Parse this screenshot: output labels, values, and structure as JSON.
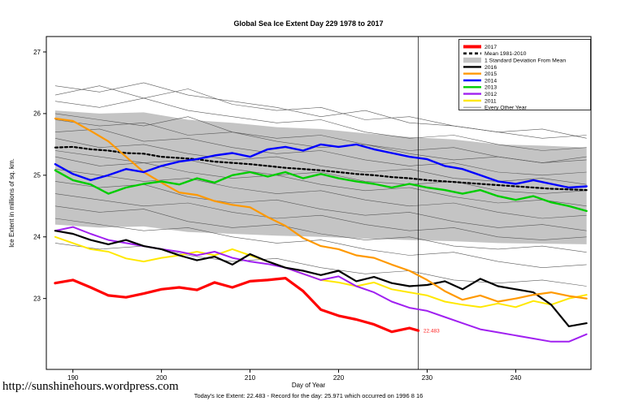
{
  "page": {
    "footer_url": "http://sunshinehours.wordpress.com"
  },
  "chart_data": {
    "type": "line",
    "title": "Global Sea Ice Extent Day 229 1978 to 2017",
    "xlabel": "Day of Year",
    "ylabel": "Ice Extent in millions of sq. km.",
    "caption": "Today's Ice Extent: 22.483  - Record for the day: 25.971 which occurred on 1996 8 16",
    "xlim": [
      187,
      248.5
    ],
    "ylim": [
      21.85,
      27.25
    ],
    "xticks": [
      190,
      200,
      210,
      220,
      230,
      240
    ],
    "yticks": [
      23,
      24,
      25,
      26,
      27
    ],
    "grid": false,
    "legend_position": "top-right",
    "vline_x": 229,
    "annotation": {
      "text": "22.483",
      "x": 229.3,
      "y": 22.483,
      "color": "#FF2222"
    },
    "band": {
      "name": "1 Standard Deviation From Mean",
      "color": "#C4C4C4",
      "days": [
        188,
        193,
        198,
        203,
        208,
        213,
        218,
        223,
        228,
        233,
        238,
        243,
        248
      ],
      "upper": [
        26.05,
        26.0,
        26.02,
        25.9,
        25.85,
        25.78,
        25.75,
        25.68,
        25.62,
        25.58,
        25.5,
        25.48,
        25.45
      ],
      "lower": [
        24.2,
        24.15,
        24.17,
        24.08,
        24.05,
        24.02,
        24.0,
        23.97,
        23.95,
        23.93,
        23.9,
        23.89,
        23.88
      ]
    },
    "days_main": [
      188,
      190,
      192,
      194,
      196,
      198,
      200,
      202,
      204,
      206,
      208,
      210,
      212,
      214,
      216,
      218,
      220,
      222,
      224,
      226,
      228,
      230,
      232,
      234,
      236,
      238,
      240,
      242,
      244,
      246,
      248
    ],
    "series": [
      {
        "name": "Mean 1981-2010",
        "color": "#000000",
        "width": 2.2,
        "dash": "3,3",
        "values": [
          25.45,
          25.46,
          25.42,
          25.4,
          25.36,
          25.35,
          25.3,
          25.28,
          25.26,
          25.22,
          25.2,
          25.18,
          25.15,
          25.12,
          25.1,
          25.08,
          25.05,
          25.02,
          25.0,
          24.97,
          24.95,
          24.92,
          24.9,
          24.88,
          24.86,
          24.84,
          24.82,
          24.8,
          24.78,
          24.77,
          24.76
        ]
      },
      {
        "name": "2011",
        "color": "#FFE800",
        "width": 2.0,
        "values": [
          24.0,
          23.9,
          23.8,
          23.76,
          23.65,
          23.6,
          23.66,
          23.7,
          23.76,
          23.7,
          23.8,
          23.7,
          23.6,
          23.5,
          23.4,
          23.3,
          23.26,
          23.2,
          23.26,
          23.15,
          23.1,
          23.05,
          22.95,
          22.9,
          22.86,
          22.92,
          22.86,
          22.96,
          22.9,
          23.0,
          23.06
        ]
      },
      {
        "name": "2012",
        "color": "#A020F0",
        "width": 2.0,
        "values": [
          24.1,
          24.16,
          24.05,
          23.95,
          23.9,
          23.85,
          23.8,
          23.76,
          23.7,
          23.76,
          23.66,
          23.6,
          23.56,
          23.5,
          23.4,
          23.3,
          23.36,
          23.2,
          23.1,
          22.95,
          22.85,
          22.8,
          22.7,
          22.6,
          22.5,
          22.45,
          22.4,
          22.35,
          22.3,
          22.3,
          22.42
        ]
      },
      {
        "name": "2016",
        "color": "#000000",
        "width": 2.2,
        "values": [
          24.1,
          24.05,
          23.95,
          23.88,
          23.95,
          23.85,
          23.8,
          23.7,
          23.62,
          23.68,
          23.55,
          23.72,
          23.6,
          23.5,
          23.45,
          23.38,
          23.45,
          23.28,
          23.35,
          23.25,
          23.2,
          23.22,
          23.28,
          23.15,
          23.32,
          23.2,
          23.15,
          23.1,
          22.9,
          22.55,
          22.6
        ]
      },
      {
        "name": "2015",
        "color": "#FF9900",
        "width": 2.2,
        "values": [
          25.92,
          25.88,
          25.72,
          25.55,
          25.3,
          25.05,
          24.88,
          24.72,
          24.68,
          24.58,
          24.52,
          24.48,
          24.32,
          24.18,
          23.98,
          23.85,
          23.8,
          23.7,
          23.66,
          23.55,
          23.45,
          23.3,
          23.12,
          22.98,
          23.05,
          22.95,
          23.0,
          23.06,
          23.1,
          23.04,
          23.0
        ]
      },
      {
        "name": "2013",
        "color": "#00CC00",
        "width": 2.4,
        "values": [
          25.08,
          24.92,
          24.85,
          24.7,
          24.8,
          24.86,
          24.9,
          24.85,
          24.95,
          24.88,
          25.0,
          25.05,
          24.98,
          25.05,
          24.95,
          25.02,
          24.95,
          24.9,
          24.86,
          24.8,
          24.86,
          24.8,
          24.76,
          24.7,
          24.76,
          24.66,
          24.6,
          24.66,
          24.56,
          24.5,
          24.42
        ]
      },
      {
        "name": "2014",
        "color": "#0000FF",
        "width": 2.4,
        "values": [
          25.18,
          25.02,
          24.92,
          25.0,
          25.1,
          25.05,
          25.15,
          25.22,
          25.26,
          25.32,
          25.36,
          25.3,
          25.42,
          25.46,
          25.4,
          25.5,
          25.46,
          25.5,
          25.42,
          25.36,
          25.3,
          25.26,
          25.15,
          25.1,
          25.0,
          24.9,
          24.86,
          24.92,
          24.86,
          24.8,
          24.82
        ]
      },
      {
        "name": "2017",
        "color": "#FF0000",
        "width": 3.2,
        "days": [
          188,
          190,
          192,
          194,
          196,
          198,
          200,
          202,
          204,
          206,
          208,
          210,
          212,
          214,
          216,
          218,
          220,
          222,
          224,
          226,
          228,
          229
        ],
        "values": [
          23.25,
          23.3,
          23.18,
          23.05,
          23.02,
          23.08,
          23.15,
          23.18,
          23.14,
          23.26,
          23.18,
          23.28,
          23.3,
          23.33,
          23.12,
          22.82,
          22.72,
          22.66,
          22.58,
          22.46,
          22.52,
          22.48
        ]
      }
    ],
    "background": {
      "name": "Every Other Year",
      "color": "#5A5A5A",
      "width": 0.6,
      "days": [
        188,
        193,
        198,
        203,
        208,
        213,
        218,
        223,
        228,
        233,
        238,
        243,
        248
      ],
      "lines": [
        [
          26.3,
          26.45,
          26.25,
          26.4,
          26.15,
          26.05,
          26.1,
          25.9,
          25.95,
          25.8,
          25.7,
          25.6,
          25.65
        ],
        [
          26.45,
          26.35,
          26.5,
          26.3,
          26.2,
          26.1,
          25.95,
          26.05,
          25.85,
          25.8,
          25.7,
          25.75,
          25.6
        ],
        [
          26.2,
          26.1,
          26.25,
          26.05,
          25.95,
          25.85,
          25.9,
          25.7,
          25.6,
          25.65,
          25.5,
          25.4,
          25.45
        ],
        [
          26.0,
          25.9,
          25.8,
          25.95,
          25.7,
          25.6,
          25.65,
          25.5,
          25.4,
          25.45,
          25.3,
          25.2,
          25.25
        ],
        [
          25.9,
          25.8,
          25.85,
          25.65,
          25.7,
          25.55,
          25.45,
          25.5,
          25.35,
          25.25,
          25.3,
          25.2,
          25.3
        ],
        [
          25.7,
          25.75,
          25.55,
          25.6,
          25.45,
          25.35,
          25.4,
          25.25,
          25.15,
          25.2,
          25.05,
          25.0,
          25.05
        ],
        [
          25.6,
          25.45,
          25.5,
          25.35,
          25.25,
          25.3,
          25.15,
          25.05,
          25.1,
          24.95,
          24.9,
          24.95,
          24.85
        ],
        [
          25.4,
          25.3,
          25.2,
          25.25,
          25.1,
          25.0,
          25.05,
          24.9,
          24.85,
          24.9,
          24.75,
          24.7,
          24.75
        ],
        [
          25.3,
          25.15,
          25.2,
          25.05,
          24.95,
          25.0,
          24.85,
          24.75,
          24.8,
          24.65,
          24.55,
          24.6,
          24.5
        ],
        [
          25.1,
          25.0,
          24.9,
          24.95,
          24.8,
          24.7,
          24.75,
          24.6,
          24.5,
          24.55,
          24.4,
          24.3,
          24.35
        ],
        [
          24.9,
          24.8,
          24.85,
          24.65,
          24.55,
          24.6,
          24.45,
          24.35,
          24.4,
          24.25,
          24.15,
          24.2,
          24.1
        ],
        [
          24.7,
          24.6,
          24.5,
          24.55,
          24.4,
          24.3,
          24.35,
          24.2,
          24.1,
          24.15,
          24.0,
          23.95,
          24.0
        ],
        [
          24.5,
          24.4,
          24.45,
          24.25,
          24.15,
          24.2,
          24.05,
          23.95,
          24.0,
          23.85,
          23.8,
          23.85,
          23.75
        ],
        [
          24.3,
          24.2,
          24.1,
          24.15,
          24.0,
          23.9,
          23.95,
          23.8,
          23.7,
          23.75,
          23.6,
          23.5,
          23.55
        ],
        [
          23.9,
          23.8,
          23.85,
          23.7,
          23.6,
          23.65,
          23.5,
          23.4,
          23.45,
          23.3,
          23.25,
          23.3,
          23.2
        ]
      ]
    },
    "legend": [
      {
        "label": "2017",
        "color": "#FF0000",
        "lw": 4
      },
      {
        "label": "Mean 1981-2010",
        "color": "#000000",
        "lw": 2.6,
        "dash": "4,3"
      },
      {
        "label": "1 Standard Deviation From Mean",
        "color": "#C4C4C4",
        "type": "band"
      },
      {
        "label": "2016",
        "color": "#000000",
        "lw": 2.4
      },
      {
        "label": "2015",
        "color": "#FF9900",
        "lw": 2.4
      },
      {
        "label": "2014",
        "color": "#0000FF",
        "lw": 2.4
      },
      {
        "label": "2013",
        "color": "#00CC00",
        "lw": 2.4
      },
      {
        "label": "2012",
        "color": "#A020F0",
        "lw": 2.4
      },
      {
        "label": "2011",
        "color": "#FFE800",
        "lw": 2.4
      },
      {
        "label": "Every Other Year",
        "color": "#777777",
        "lw": 0.8
      }
    ]
  }
}
